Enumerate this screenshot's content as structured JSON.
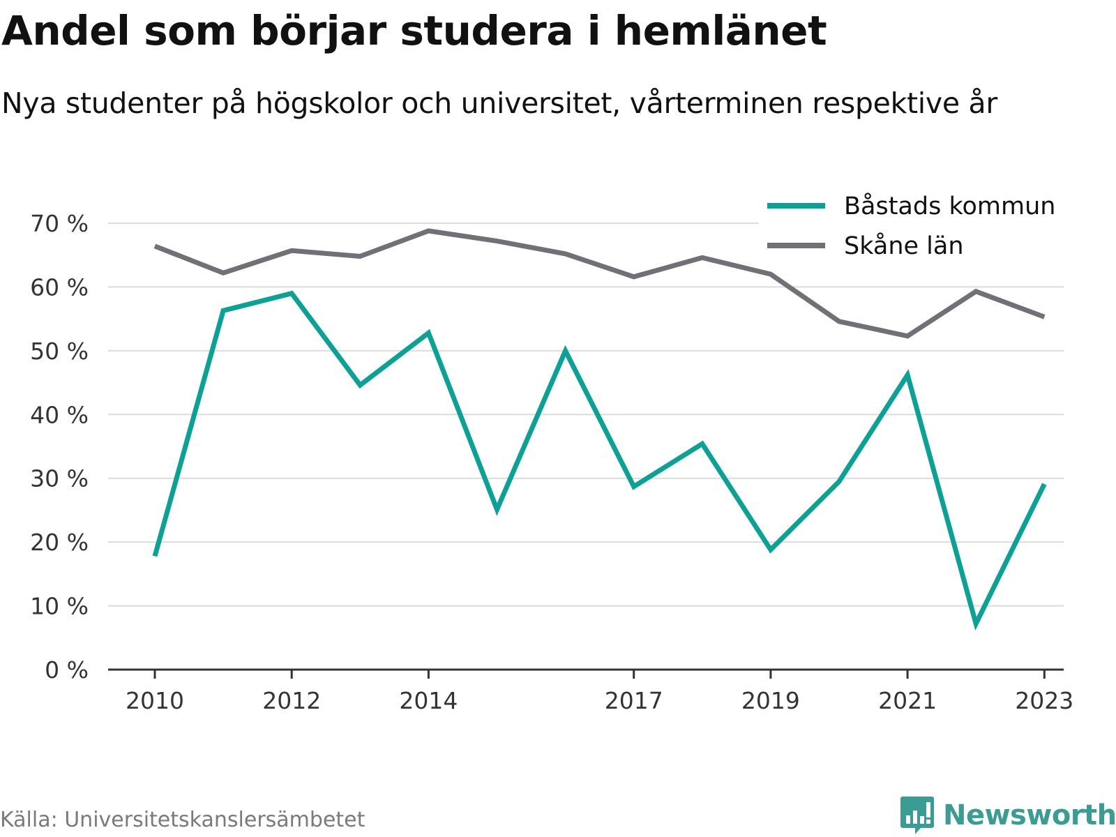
{
  "header": {
    "title": "Andel som börjar studera i hemlänet",
    "subtitle": "Nya studenter på högskolor och universitet, vårterminen respektive år"
  },
  "footer": {
    "source": "Källa: Universitetskanslersämbetet",
    "brand": "Newsworthy",
    "brand_icon": "bar-chart-speech-bubble-icon"
  },
  "colors": {
    "bastad": "#0aa294",
    "skane": "#717077",
    "grid": "#dcdcdc",
    "axis": "#333333",
    "brand": "#3a9d94"
  },
  "chart_data": {
    "type": "line",
    "x": [
      2010,
      2011,
      2012,
      2013,
      2014,
      2015,
      2016,
      2017,
      2018,
      2019,
      2020,
      2021,
      2022,
      2023
    ],
    "x_tick_labels": [
      "2010",
      "2012",
      "2014",
      "2017",
      "2019",
      "2021",
      "2023"
    ],
    "y_ticks": [
      0,
      10,
      20,
      30,
      40,
      50,
      60,
      70
    ],
    "y_tick_labels": [
      "0 %",
      "10 %",
      "20 %",
      "30 %",
      "40 %",
      "50 %",
      "60 %",
      "70 %"
    ],
    "ylim": [
      0,
      70
    ],
    "grid": true,
    "legend_position": "top-right",
    "series": [
      {
        "name": "Båstads kommun",
        "color": "#0aa294",
        "values": [
          17.8,
          56.3,
          59.0,
          44.6,
          52.8,
          25.1,
          50.0,
          28.7,
          35.4,
          18.8,
          29.5,
          46.2,
          7.2,
          29.1
        ]
      },
      {
        "name": "Skåne län",
        "color": "#717077",
        "values": [
          66.4,
          62.2,
          65.7,
          64.8,
          68.8,
          67.2,
          65.2,
          61.6,
          64.6,
          62.0,
          54.6,
          52.3,
          59.3,
          55.3
        ]
      }
    ]
  }
}
